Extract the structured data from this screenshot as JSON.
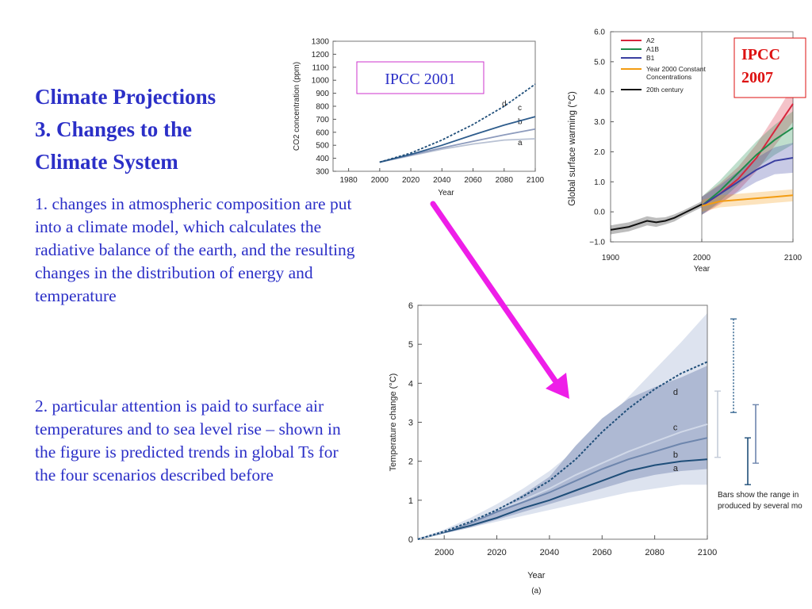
{
  "slide": {
    "title_lines": [
      "Climate Projections",
      "3. Changes to the",
      "Climate System"
    ],
    "paragraph1": "1. changes in atmospheric composition are put into a climate model, which calculates the radiative balance of the earth, and the resulting changes in the distribution of energy and temperature",
    "paragraph2": "2. particular attention is paid to surface air temperatures and to sea level rise – shown in the figure is predicted trends in global Ts for the four scenarios described before",
    "colors": {
      "text": "#2b2fc7",
      "arrow": "#ee1ee8",
      "label_box_2001": "#cc33cc",
      "label_box_2007": "#dd1111"
    }
  },
  "chart_data": [
    {
      "type": "line",
      "label_box": "IPCC 2001",
      "xlabel": "Year",
      "ylabel": "CO2 concentration (ppm)",
      "xlim": [
        1970,
        2100
      ],
      "ylim": [
        300,
        1300
      ],
      "x_ticks": [
        1980,
        2000,
        2020,
        2040,
        2060,
        2080,
        2100
      ],
      "y_ticks": [
        300,
        400,
        500,
        600,
        700,
        800,
        900,
        1000,
        1100,
        1200,
        1300
      ],
      "x": [
        2000,
        2020,
        2040,
        2060,
        2080,
        2100
      ],
      "series": [
        {
          "name": "a",
          "color": "#b8c1d3",
          "dash": false,
          "values": [
            370,
            420,
            470,
            510,
            540,
            550
          ]
        },
        {
          "name": "b",
          "color": "#8d9bbd",
          "dash": false,
          "values": [
            370,
            425,
            480,
            530,
            580,
            625
          ]
        },
        {
          "name": "c",
          "color": "#2e5c8c",
          "dash": false,
          "values": [
            370,
            430,
            500,
            580,
            655,
            720
          ]
        },
        {
          "name": "d",
          "color": "#1f4e79",
          "dash": true,
          "values": [
            370,
            440,
            540,
            660,
            800,
            970
          ]
        }
      ]
    },
    {
      "type": "line",
      "label_box": "IPCC 2007",
      "xlabel": "Year",
      "ylabel": "Global surface warming (°C)",
      "xlim": [
        1900,
        2100
      ],
      "ylim": [
        -1.0,
        6.0
      ],
      "x_ticks": [
        1900,
        2000,
        2100
      ],
      "y_ticks": [
        -1.0,
        0.0,
        1.0,
        2.0,
        3.0,
        4.0,
        5.0,
        6.0
      ],
      "legend": [
        "A2",
        "A1B",
        "B1",
        "Year 2000 Constant Concentrations",
        "20th century"
      ],
      "legend_position": "top-left",
      "series": [
        {
          "name": "A2",
          "color": "#d7263d",
          "x": [
            2000,
            2020,
            2040,
            2060,
            2080,
            2100
          ],
          "values": [
            0.2,
            0.6,
            1.1,
            1.8,
            2.7,
            3.6
          ],
          "band": [
            0.3,
            0.35,
            0.4,
            0.45,
            0.5,
            0.6
          ]
        },
        {
          "name": "A1B",
          "color": "#1e8c4a",
          "x": [
            2000,
            2020,
            2040,
            2060,
            2080,
            2100
          ],
          "values": [
            0.2,
            0.7,
            1.3,
            1.9,
            2.4,
            2.8
          ],
          "band": [
            0.3,
            0.35,
            0.4,
            0.45,
            0.5,
            0.55
          ]
        },
        {
          "name": "B1",
          "color": "#3a3fa0",
          "x": [
            2000,
            2020,
            2040,
            2060,
            2080,
            2100
          ],
          "values": [
            0.2,
            0.6,
            1.0,
            1.4,
            1.7,
            1.8
          ],
          "band": [
            0.3,
            0.3,
            0.35,
            0.4,
            0.45,
            0.5
          ]
        },
        {
          "name": "Year 2000 Constant Concentrations",
          "color": "#f39c12",
          "x": [
            2000,
            2020,
            2040,
            2060,
            2080,
            2100
          ],
          "values": [
            0.2,
            0.35,
            0.4,
            0.45,
            0.5,
            0.55
          ],
          "band": [
            0.2,
            0.2,
            0.2,
            0.2,
            0.2,
            0.2
          ]
        },
        {
          "name": "20th century",
          "color": "#111111",
          "x": [
            1900,
            1910,
            1920,
            1930,
            1940,
            1950,
            1960,
            1970,
            1980,
            1990,
            2000
          ],
          "values": [
            -0.6,
            -0.55,
            -0.5,
            -0.4,
            -0.3,
            -0.35,
            -0.3,
            -0.2,
            -0.05,
            0.1,
            0.25
          ],
          "band": [
            0.15,
            0.15,
            0.15,
            0.15,
            0.15,
            0.15,
            0.12,
            0.12,
            0.1,
            0.1,
            0.1
          ]
        }
      ]
    },
    {
      "type": "line",
      "xlabel": "Year",
      "ylabel": "Temperature change (°C)",
      "caption": "(a)",
      "xlim": [
        1990,
        2100
      ],
      "ylim": [
        0,
        6
      ],
      "x_ticks": [
        2000,
        2020,
        2040,
        2060,
        2080,
        2100
      ],
      "y_ticks": [
        0,
        1,
        2,
        3,
        4,
        5,
        6
      ],
      "x": [
        1990,
        2000,
        2010,
        2020,
        2030,
        2040,
        2050,
        2060,
        2070,
        2080,
        2090,
        2100
      ],
      "outer_envelope": {
        "upper": [
          0,
          0.25,
          0.55,
          0.9,
          1.3,
          1.75,
          2.3,
          2.95,
          3.65,
          4.35,
          5.05,
          5.8
        ],
        "lower": [
          0,
          0.15,
          0.3,
          0.45,
          0.6,
          0.75,
          0.9,
          1.05,
          1.2,
          1.3,
          1.4,
          1.4
        ]
      },
      "inner_envelope": {
        "upper": [
          0,
          0.2,
          0.45,
          0.75,
          1.15,
          1.6,
          2.4,
          3.1,
          3.6,
          3.9,
          4.15,
          4.45
        ],
        "lower": [
          0,
          0.15,
          0.3,
          0.5,
          0.7,
          0.9,
          1.1,
          1.3,
          1.5,
          1.65,
          1.75,
          1.8
        ]
      },
      "series": [
        {
          "name": "a",
          "color": "#1f4e79",
          "dash": false,
          "values": [
            0,
            0.18,
            0.35,
            0.55,
            0.8,
            1.0,
            1.25,
            1.5,
            1.75,
            1.9,
            2.0,
            2.05
          ]
        },
        {
          "name": "b",
          "color": "#6e86ad",
          "dash": false,
          "values": [
            0,
            0.2,
            0.42,
            0.7,
            0.95,
            1.2,
            1.5,
            1.8,
            2.05,
            2.25,
            2.45,
            2.6
          ]
        },
        {
          "name": "c",
          "color": "#d0d8e8",
          "dash": false,
          "values": [
            0,
            0.2,
            0.45,
            0.75,
            1.0,
            1.3,
            1.65,
            1.95,
            2.25,
            2.5,
            2.75,
            2.95
          ]
        },
        {
          "name": "d",
          "color": "#1f4e79",
          "dash": true,
          "values": [
            0,
            0.2,
            0.45,
            0.75,
            1.1,
            1.5,
            2.05,
            2.75,
            3.35,
            3.85,
            4.25,
            4.55
          ]
        }
      ],
      "range_bars": [
        {
          "series": "a",
          "low": 1.4,
          "high": 2.6,
          "color": "#1f4e79",
          "dash": false
        },
        {
          "series": "b",
          "low": 1.95,
          "high": 3.45,
          "color": "#6e86ad",
          "dash": false
        },
        {
          "series": "c",
          "low": 2.1,
          "high": 3.8,
          "color": "#c4cbd8",
          "dash": false
        },
        {
          "series": "d",
          "low": 3.25,
          "high": 5.65,
          "color": "#3f6d96",
          "dash": true
        }
      ],
      "annotation": "Bars show the range in produced by several mo"
    }
  ]
}
